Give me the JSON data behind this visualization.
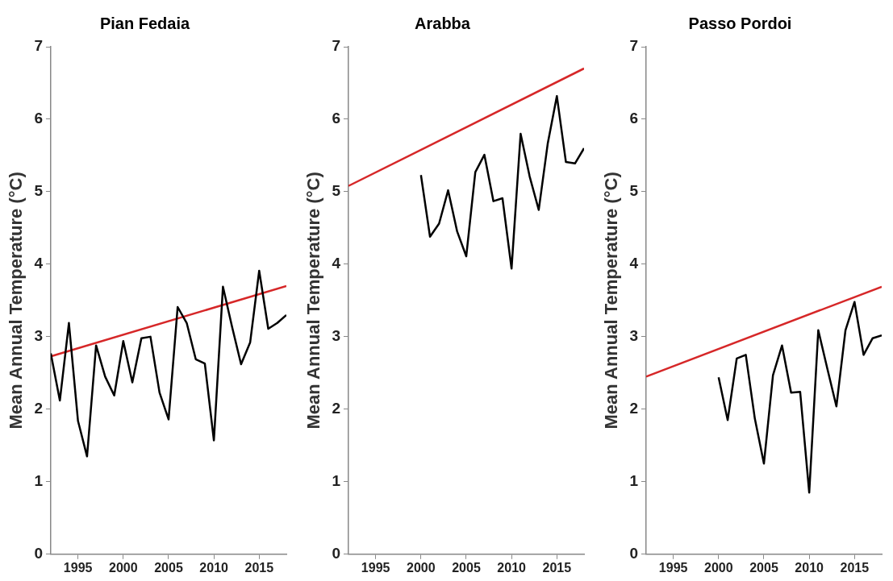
{
  "chart_data": [
    {
      "type": "line",
      "title": "Pian Fedaia",
      "ylabel": "Mean Annual Temperature (°C)",
      "xlim": [
        1992,
        2018
      ],
      "xticks": [
        1995,
        2000,
        2005,
        2010,
        2015
      ],
      "ylim": [
        0,
        7
      ],
      "yticks": [
        0,
        1,
        2,
        3,
        4,
        5,
        6,
        7
      ],
      "grid": false,
      "legend": false,
      "marker": "none",
      "line_style": "solid",
      "series": [
        {
          "color": "#000000",
          "x": [
            1992,
            1993,
            1994,
            1995,
            1996,
            1997,
            1998,
            1999,
            2000,
            2001,
            2002,
            2003,
            2004,
            2005,
            2006,
            2007,
            2008,
            2009,
            2010,
            2011,
            2012,
            2013,
            2014,
            2015,
            2016,
            2017,
            2018
          ],
          "values": [
            2.77,
            2.12,
            3.19,
            1.84,
            1.35,
            2.88,
            2.45,
            2.19,
            2.94,
            2.37,
            2.98,
            3.0,
            2.23,
            1.86,
            3.41,
            3.19,
            2.69,
            2.63,
            1.57,
            3.69,
            3.14,
            2.62,
            2.92,
            3.91,
            3.11,
            3.19,
            3.3
          ]
        },
        {
          "type": "line",
          "color": "#d62728",
          "x": [
            1992,
            2018
          ],
          "values": [
            2.73,
            3.7
          ]
        }
      ]
    },
    {
      "type": "line",
      "title": "Arabba",
      "ylabel": "Mean Annual Temperature (°C)",
      "xlim": [
        1992,
        2018
      ],
      "xticks": [
        1995,
        2000,
        2005,
        2010,
        2015
      ],
      "ylim": [
        0,
        7
      ],
      "yticks": [
        0,
        1,
        2,
        3,
        4,
        5,
        6,
        7
      ],
      "grid": false,
      "legend": false,
      "marker": "none",
      "line_style": "solid",
      "series": [
        {
          "color": "#000000",
          "x": [
            2000,
            2001,
            2002,
            2003,
            2004,
            2005,
            2006,
            2007,
            2008,
            2009,
            2010,
            2011,
            2012,
            2013,
            2014,
            2015,
            2016,
            2017,
            2018
          ],
          "values": [
            5.23,
            4.38,
            4.56,
            5.02,
            4.45,
            4.11,
            5.27,
            5.51,
            4.87,
            4.91,
            3.94,
            5.8,
            5.21,
            4.75,
            5.67,
            6.32,
            5.41,
            5.39,
            5.6
          ]
        },
        {
          "type": "line",
          "color": "#d62728",
          "x": [
            1992,
            2018
          ],
          "values": [
            5.08,
            6.7
          ]
        }
      ]
    },
    {
      "type": "line",
      "title": "Passo Pordoi",
      "ylabel": "Mean Annual Temperature (°C)",
      "xlim": [
        1992,
        2018
      ],
      "xticks": [
        1995,
        2000,
        2005,
        2010,
        2015
      ],
      "ylim": [
        0,
        7
      ],
      "yticks": [
        0,
        1,
        2,
        3,
        4,
        5,
        6,
        7
      ],
      "grid": false,
      "legend": false,
      "marker": "none",
      "line_style": "solid",
      "series": [
        {
          "color": "#000000",
          "x": [
            2000,
            2001,
            2002,
            2003,
            2004,
            2005,
            2006,
            2007,
            2008,
            2009,
            2010,
            2011,
            2012,
            2013,
            2014,
            2015,
            2016,
            2017,
            2018
          ],
          "values": [
            2.44,
            1.85,
            2.7,
            2.75,
            1.87,
            1.25,
            2.47,
            2.88,
            2.23,
            2.24,
            0.85,
            3.09,
            2.56,
            2.04,
            3.09,
            3.48,
            2.75,
            2.98,
            3.02
          ]
        },
        {
          "type": "line",
          "color": "#d62728",
          "x": [
            1992,
            2018
          ],
          "values": [
            2.45,
            3.69
          ]
        }
      ]
    }
  ]
}
